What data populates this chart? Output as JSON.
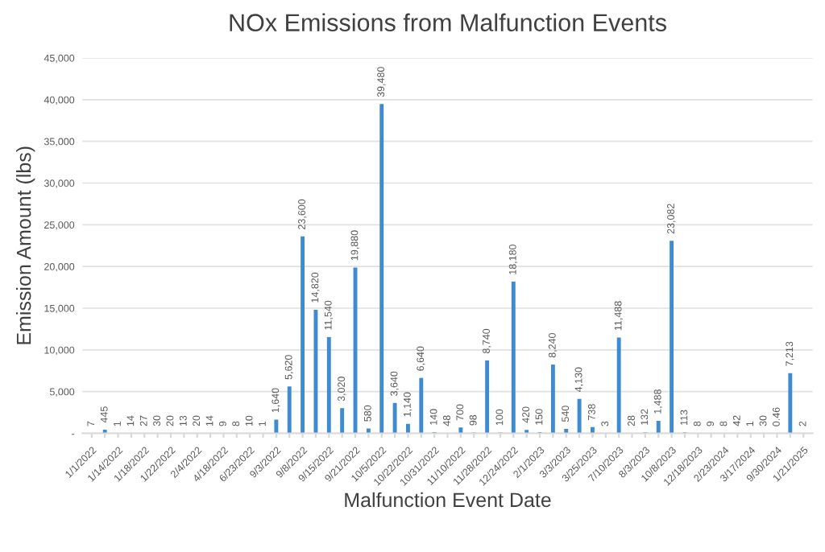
{
  "chart_data": {
    "type": "bar",
    "title": "NOx Emissions from Malfunction Events",
    "xlabel": "Malfunction Event Date",
    "ylabel": "Emission Amount (lbs)",
    "categories": [
      "1/1/2022",
      null,
      "1/14/2022",
      null,
      "1/18/2022",
      null,
      "1/22/2022",
      null,
      "2/4/2022",
      null,
      "4/18/2022",
      null,
      "6/23/2022",
      null,
      "9/3/2022",
      null,
      "9/8/2022",
      null,
      "9/15/2022",
      null,
      "9/21/2022",
      null,
      "10/5/2022",
      null,
      "10/22/2022",
      null,
      "10/31/2022",
      null,
      "11/10/2022",
      null,
      "11/28/2022",
      null,
      "12/24/2022",
      null,
      "2/1/2023",
      null,
      "3/3/2023",
      null,
      "3/25/2023",
      null,
      "7/10/2023",
      null,
      "8/3/2023",
      null,
      "10/8/2023",
      null,
      "12/18/2023",
      null,
      "2/23/2024",
      null,
      "3/17/2024",
      null,
      "9/30/2024",
      null,
      "1/21/2025"
    ],
    "values": [
      7,
      445,
      1,
      14,
      27,
      30,
      20,
      13,
      20,
      14,
      9,
      8,
      10,
      1,
      1640,
      5620,
      23600,
      14820,
      11540,
      3020,
      19880,
      580,
      39480,
      3640,
      1140,
      6640,
      140,
      48,
      700,
      98,
      8740,
      100,
      18180,
      420,
      150,
      8240,
      540,
      4130,
      738,
      3,
      11488,
      28,
      132,
      1488,
      23082,
      113,
      8,
      9,
      8,
      42,
      1,
      30,
      0.46,
      7213,
      2
    ],
    "color": "#3f8bd1",
    "ylim": [
      0,
      45000
    ],
    "yticks": [
      {
        "value": 0,
        "label": "-"
      },
      {
        "value": 5000,
        "label": "5,000"
      },
      {
        "value": 10000,
        "label": "10,000"
      },
      {
        "value": 15000,
        "label": "15,000"
      },
      {
        "value": 20000,
        "label": "20,000"
      },
      {
        "value": 25000,
        "label": "25,000"
      },
      {
        "value": 30000,
        "label": "30,000"
      },
      {
        "value": 35000,
        "label": "35,000"
      },
      {
        "value": 40000,
        "label": "40,000"
      },
      {
        "value": 45000,
        "label": "45,000"
      }
    ],
    "value_labels": [
      "7",
      "445",
      "1",
      "14",
      "27",
      "30",
      "20",
      "13",
      "20",
      "14",
      "9",
      "8",
      "10",
      "1",
      "1,640",
      "5,620",
      "23,600",
      "14,820",
      "11,540",
      "3,020",
      "19,880",
      "580",
      "39,480",
      "3,640",
      "1,140",
      "6,640",
      "140",
      "48",
      "700",
      "98",
      "8,740",
      "100",
      "18,180",
      "420",
      "150",
      "8,240",
      "540",
      "4,130",
      "738",
      "3",
      "11,488",
      "28",
      "132",
      "1,488",
      "23,082",
      "113",
      "8",
      "9",
      "8",
      "42",
      "1",
      "30",
      "0.46",
      "7,213",
      "2"
    ],
    "grid": "y"
  }
}
